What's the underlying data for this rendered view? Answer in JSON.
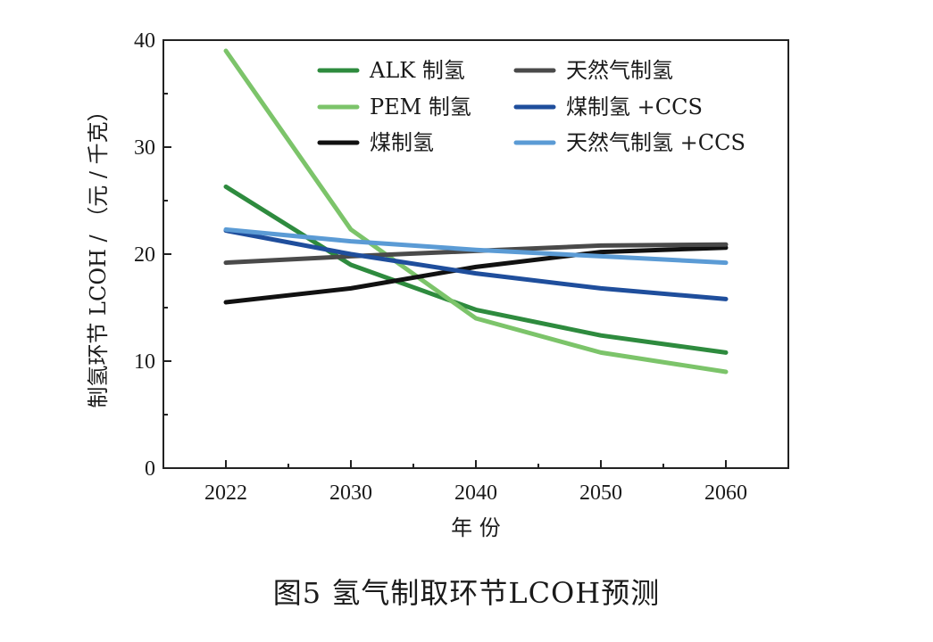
{
  "figure_caption": "图5   氢气制取环节LCOH预测",
  "chart_data": {
    "type": "line",
    "x": [
      2022,
      2030,
      2040,
      2050,
      2060
    ],
    "x_tick_labels": [
      "2022",
      "2030",
      "2040",
      "2050",
      "2060"
    ],
    "xlabel": "年 份",
    "ylabel": "制氢环节 LCOH / （元 / 千克）",
    "ylim": [
      0,
      40
    ],
    "y_ticks": [
      0,
      10,
      20,
      30,
      40
    ],
    "grid": false,
    "legend_position": "top-right",
    "series": [
      {
        "name": "ALK 制氢",
        "color": "#2e8b3e",
        "values": [
          26.3,
          19.0,
          14.8,
          12.4,
          10.8
        ]
      },
      {
        "name": "PEM 制氢",
        "color": "#7cc46a",
        "values": [
          39.0,
          22.3,
          14.0,
          10.8,
          9.0
        ]
      },
      {
        "name": "煤制氢",
        "color": "#111111",
        "values": [
          15.5,
          16.8,
          18.8,
          20.2,
          20.6
        ]
      },
      {
        "name": "天然气制氢",
        "color": "#4a4a4a",
        "values": [
          19.2,
          19.8,
          20.3,
          20.8,
          20.9
        ]
      },
      {
        "name": "煤制氢 +CCS",
        "color": "#1f4e9c",
        "values": [
          22.2,
          20.0,
          18.2,
          16.8,
          15.8
        ]
      },
      {
        "name": "天然气制氢 +CCS",
        "color": "#5b9bd5",
        "values": [
          22.3,
          21.2,
          20.4,
          19.8,
          19.2
        ]
      }
    ]
  }
}
